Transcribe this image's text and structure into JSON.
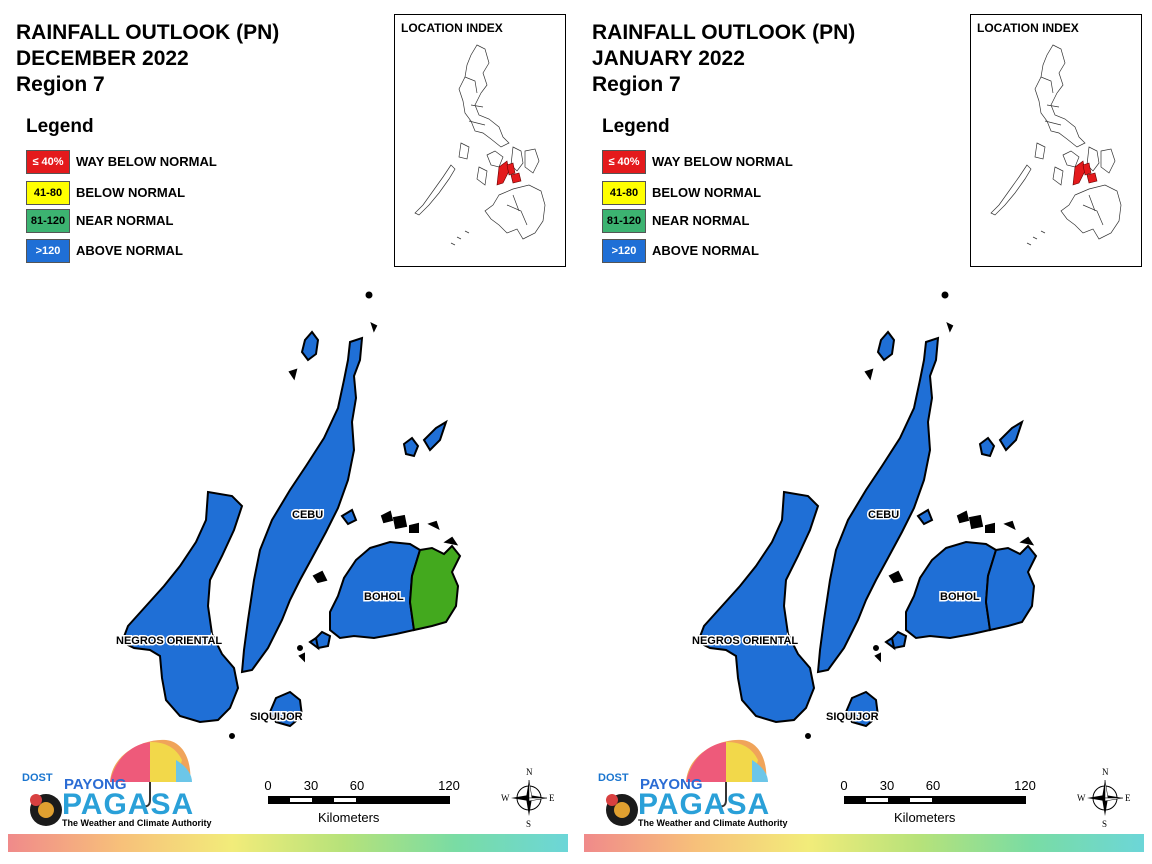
{
  "panels": [
    {
      "title_line1": "RAINFALL OUTLOOK (PN)",
      "title_line2": "DECEMBER 2022",
      "title_line3": "Region 7",
      "bohol_east_class": "near_normal"
    },
    {
      "title_line1": "RAINFALL OUTLOOK (PN)",
      "title_line2": "JANUARY 2022",
      "title_line3": "Region 7",
      "bohol_east_class": "above_normal"
    }
  ],
  "legend": {
    "title": "Legend",
    "items": [
      {
        "code": "≤ 40%",
        "label": "WAY BELOW NORMAL",
        "color": "#e41a1c",
        "text_color": "#ffffff"
      },
      {
        "code": "41-80",
        "label": "BELOW NORMAL",
        "color": "#ffff00",
        "text_color": "#000000"
      },
      {
        "code": "81-120",
        "label": "NEAR NORMAL",
        "color": "#3cb371",
        "text_color": "#000000"
      },
      {
        "code": ">120",
        "label": "ABOVE NORMAL",
        "color": "#1f6fd6",
        "text_color": "#ffffff"
      }
    ]
  },
  "location_index": {
    "title": "LOCATION INDEX",
    "highlight_color": "#e41a1c"
  },
  "islands": {
    "cebu": "CEBU",
    "bohol": "BOHOL",
    "negros": "NEGROS ORIENTAL",
    "siquijor": "SIQUIJOR"
  },
  "colors": {
    "above_normal": "#1f6fd6",
    "near_normal": "#43a91e"
  },
  "scale": {
    "ticks": [
      "0",
      "30",
      "60",
      "120"
    ],
    "unit": "Kilometers"
  },
  "compass": {
    "n": "N",
    "s": "S",
    "e": "E",
    "w": "W"
  },
  "logo": {
    "dost": "DOST",
    "payong": "PAYONG",
    "pagasa": "PAGASA",
    "tagline": "The Weather and Climate Authority"
  }
}
